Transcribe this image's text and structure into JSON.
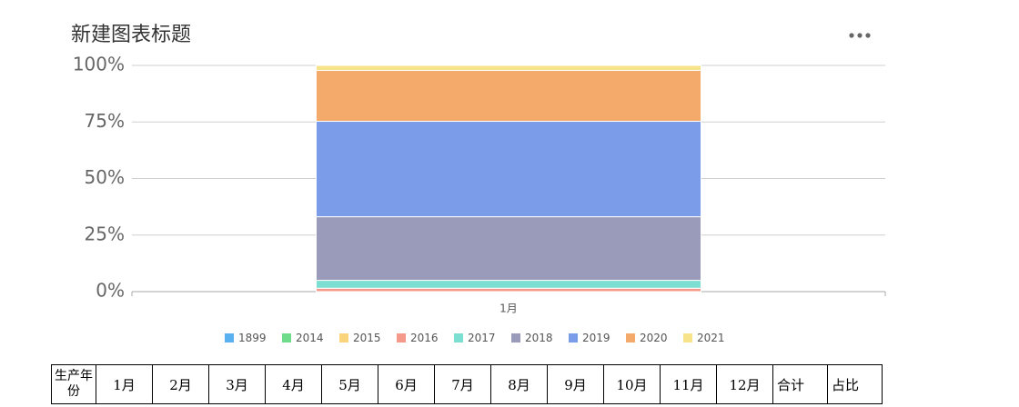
{
  "chart_data": {
    "type": "stacked_percent_bar",
    "title": "新建图表标题",
    "categories": [
      "1月"
    ],
    "series": [
      {
        "name": "1899",
        "color": "#5ab1ef",
        "values": [
          0
        ]
      },
      {
        "name": "2014",
        "color": "#6fdc8c",
        "values": [
          0
        ]
      },
      {
        "name": "2015",
        "color": "#f9d47b",
        "values": [
          0
        ]
      },
      {
        "name": "2016",
        "color": "#f5998a",
        "values": [
          1.5
        ]
      },
      {
        "name": "2017",
        "color": "#7ddfd1",
        "values": [
          3.5
        ]
      },
      {
        "name": "2018",
        "color": "#9a9bbb",
        "values": [
          28.1
        ]
      },
      {
        "name": "2019",
        "color": "#7b9de9",
        "values": [
          42.2
        ]
      },
      {
        "name": "2020",
        "color": "#f4aa6b",
        "values": [
          22.5
        ]
      },
      {
        "name": "2021",
        "color": "#f6e38a",
        "values": [
          2.2
        ]
      }
    ],
    "ylim": [
      0,
      100
    ],
    "yticks": [
      {
        "value": 0,
        "label": "0%"
      },
      {
        "value": 25,
        "label": "25%"
      },
      {
        "value": 50,
        "label": "50%"
      },
      {
        "value": 75,
        "label": "75%"
      },
      {
        "value": 100,
        "label": "100%"
      }
    ],
    "grid": true,
    "legend": "bottom"
  },
  "table": {
    "header": [
      "生产年份",
      "1月",
      "2月",
      "3月",
      "4月",
      "5月",
      "6月",
      "7月",
      "8月",
      "9月",
      "10月",
      "11月",
      "12月",
      "合计",
      "占比"
    ]
  }
}
